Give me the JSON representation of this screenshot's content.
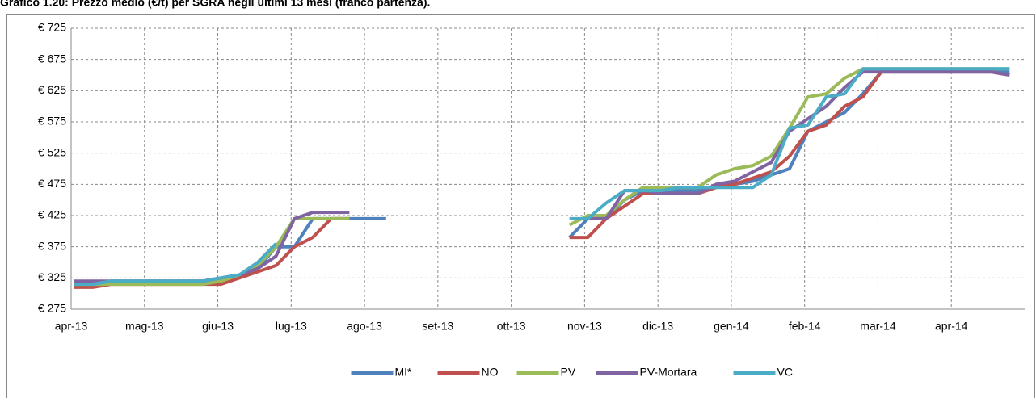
{
  "chart_data": {
    "type": "line",
    "title": "Grafico 1.20: Prezzo medio (€/t) per SGRA negli ultimi 13 mesi (franco partenza).",
    "categories": [
      "apr-13",
      null,
      null,
      null,
      "mag-13",
      null,
      null,
      null,
      "giu-13",
      null,
      null,
      null,
      "lug-13",
      null,
      null,
      null,
      "ago-13",
      null,
      null,
      null,
      "set-13",
      null,
      null,
      null,
      "ott-13",
      null,
      null,
      null,
      "nov-13",
      null,
      null,
      null,
      "dic-13",
      null,
      null,
      null,
      "gen-14",
      null,
      null,
      null,
      "feb-14",
      null,
      null,
      null,
      "mar-14",
      null,
      null,
      null,
      "apr-14",
      null,
      null,
      null
    ],
    "series": [
      {
        "name": "MI*",
        "color": "#4f81bd",
        "values": [
          315,
          315,
          320,
          320,
          320,
          320,
          320,
          320,
          325,
          330,
          340,
          375,
          375,
          420,
          420,
          420,
          420,
          420,
          null,
          null,
          null,
          null,
          null,
          null,
          null,
          null,
          null,
          390,
          420,
          420,
          450,
          465,
          465,
          465,
          465,
          470,
          475,
          480,
          490,
          500,
          560,
          575,
          590,
          620,
          655,
          655,
          655,
          655,
          655,
          655,
          655,
          655
        ]
      },
      {
        "name": "NO",
        "color": "#c0504d",
        "values": [
          310,
          310,
          315,
          315,
          315,
          315,
          315,
          315,
          315,
          325,
          335,
          345,
          375,
          390,
          420,
          420,
          null,
          null,
          null,
          null,
          null,
          null,
          null,
          null,
          null,
          null,
          null,
          390,
          390,
          420,
          440,
          460,
          460,
          460,
          460,
          470,
          475,
          485,
          495,
          520,
          560,
          570,
          600,
          615,
          655,
          655,
          655,
          655,
          655,
          655,
          655,
          650
        ]
      },
      {
        "name": "PV",
        "color": "#9bbb59",
        "values": [
          315,
          315,
          315,
          315,
          315,
          315,
          315,
          315,
          320,
          330,
          345,
          375,
          420,
          420,
          420,
          420,
          null,
          null,
          null,
          null,
          null,
          null,
          null,
          null,
          null,
          null,
          null,
          410,
          425,
          425,
          450,
          470,
          470,
          470,
          470,
          490,
          500,
          505,
          520,
          565,
          615,
          620,
          645,
          660,
          660,
          660,
          660,
          660,
          660,
          660,
          660,
          660
        ]
      },
      {
        "name": "PV-Mortara",
        "color": "#8064a2",
        "values": [
          320,
          320,
          320,
          320,
          320,
          320,
          320,
          320,
          325,
          330,
          340,
          360,
          420,
          430,
          430,
          430,
          null,
          null,
          null,
          null,
          null,
          null,
          null,
          null,
          null,
          null,
          null,
          null,
          420,
          420,
          465,
          465,
          460,
          460,
          460,
          475,
          480,
          495,
          510,
          560,
          580,
          600,
          630,
          655,
          655,
          655,
          655,
          655,
          655,
          655,
          655,
          650
        ]
      },
      {
        "name": "VC",
        "color": "#4bacc6",
        "values": [
          315,
          315,
          320,
          320,
          320,
          320,
          320,
          320,
          325,
          330,
          350,
          380,
          null,
          null,
          null,
          null,
          null,
          null,
          null,
          null,
          null,
          null,
          null,
          null,
          null,
          null,
          null,
          420,
          420,
          445,
          465,
          465,
          465,
          470,
          470,
          470,
          470,
          470,
          490,
          565,
          570,
          615,
          620,
          660,
          660,
          660,
          660,
          660,
          660,
          660,
          660,
          660
        ]
      }
    ],
    "ylim": [
      275,
      725
    ],
    "yticks": [
      {
        "value": 275,
        "label": "€ 275"
      },
      {
        "value": 325,
        "label": "€ 325"
      },
      {
        "value": 375,
        "label": "€ 375"
      },
      {
        "value": 425,
        "label": "€ 425"
      },
      {
        "value": 475,
        "label": "€ 475"
      },
      {
        "value": 525,
        "label": "€ 525"
      },
      {
        "value": 575,
        "label": "€ 575"
      },
      {
        "value": 625,
        "label": "€ 625"
      },
      {
        "value": 675,
        "label": "€ 675"
      },
      {
        "value": 725,
        "label": "€ 725"
      }
    ],
    "grid": true,
    "legend": "bottom"
  }
}
